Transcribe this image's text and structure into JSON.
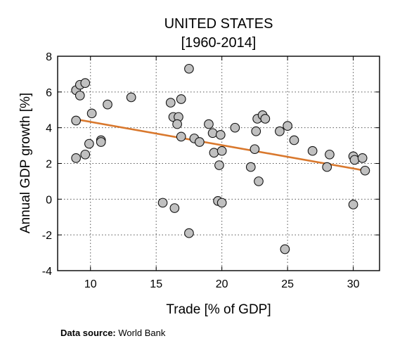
{
  "chart_data": {
    "type": "scatter",
    "title": "UNITED STATES",
    "subtitle": "[1960-2014]",
    "xlabel": "Trade [% of GDP]",
    "ylabel": "Annual GDP growth [%]",
    "xlim": [
      7.5,
      32
    ],
    "ylim": [
      -4,
      8
    ],
    "xticks": [
      10,
      15,
      20,
      25,
      30
    ],
    "yticks": [
      -4,
      -2,
      0,
      2,
      4,
      6,
      8
    ],
    "grid": true,
    "colors": {
      "marker_fill": "#c0c0c0",
      "marker_edge": "#111111",
      "trendline": "#d9782d",
      "grid": "#555555"
    },
    "trendline": {
      "x": [
        8.9,
        30.9
      ],
      "y": [
        4.47,
        1.6
      ]
    },
    "points": [
      {
        "x": 8.9,
        "y": 6.1
      },
      {
        "x": 9.2,
        "y": 6.4
      },
      {
        "x": 9.6,
        "y": 6.5
      },
      {
        "x": 9.2,
        "y": 5.8
      },
      {
        "x": 8.9,
        "y": 4.4
      },
      {
        "x": 10.1,
        "y": 4.8
      },
      {
        "x": 9.9,
        "y": 3.1
      },
      {
        "x": 9.6,
        "y": 2.5
      },
      {
        "x": 8.9,
        "y": 2.3
      },
      {
        "x": 10.8,
        "y": 3.3
      },
      {
        "x": 10.8,
        "y": 3.2
      },
      {
        "x": 11.3,
        "y": 5.3
      },
      {
        "x": 13.1,
        "y": 5.7
      },
      {
        "x": 15.5,
        "y": -0.2
      },
      {
        "x": 16.1,
        "y": 5.4
      },
      {
        "x": 16.3,
        "y": 4.6
      },
      {
        "x": 16.7,
        "y": 4.6
      },
      {
        "x": 16.6,
        "y": 4.2
      },
      {
        "x": 16.9,
        "y": 3.5
      },
      {
        "x": 16.9,
        "y": 5.6
      },
      {
        "x": 16.4,
        "y": -0.5
      },
      {
        "x": 17.5,
        "y": 7.3
      },
      {
        "x": 17.5,
        "y": -1.9
      },
      {
        "x": 17.9,
        "y": 3.4
      },
      {
        "x": 18.3,
        "y": 3.2
      },
      {
        "x": 19.0,
        "y": 4.2
      },
      {
        "x": 19.3,
        "y": 3.7
      },
      {
        "x": 19.9,
        "y": 3.6
      },
      {
        "x": 19.4,
        "y": 2.6
      },
      {
        "x": 20.0,
        "y": 2.7
      },
      {
        "x": 19.8,
        "y": 1.9
      },
      {
        "x": 19.7,
        "y": -0.1
      },
      {
        "x": 20.0,
        "y": -0.2
      },
      {
        "x": 21.0,
        "y": 4.0
      },
      {
        "x": 22.2,
        "y": 1.8
      },
      {
        "x": 22.5,
        "y": 2.8
      },
      {
        "x": 22.6,
        "y": 3.8
      },
      {
        "x": 22.7,
        "y": 4.5
      },
      {
        "x": 23.1,
        "y": 4.7
      },
      {
        "x": 23.3,
        "y": 4.5
      },
      {
        "x": 22.8,
        "y": 1.0
      },
      {
        "x": 24.4,
        "y": 3.8
      },
      {
        "x": 25.0,
        "y": 4.1
      },
      {
        "x": 25.5,
        "y": 3.3
      },
      {
        "x": 24.8,
        "y": -2.8
      },
      {
        "x": 26.9,
        "y": 2.7
      },
      {
        "x": 28.2,
        "y": 2.5
      },
      {
        "x": 28.0,
        "y": 1.8
      },
      {
        "x": 30.0,
        "y": 2.4
      },
      {
        "x": 30.1,
        "y": 2.2
      },
      {
        "x": 30.7,
        "y": 2.3
      },
      {
        "x": 30.0,
        "y": -0.3
      },
      {
        "x": 30.9,
        "y": 1.6
      }
    ]
  },
  "footer": {
    "source_label": "Data source:",
    "source_value": "World Bank"
  }
}
